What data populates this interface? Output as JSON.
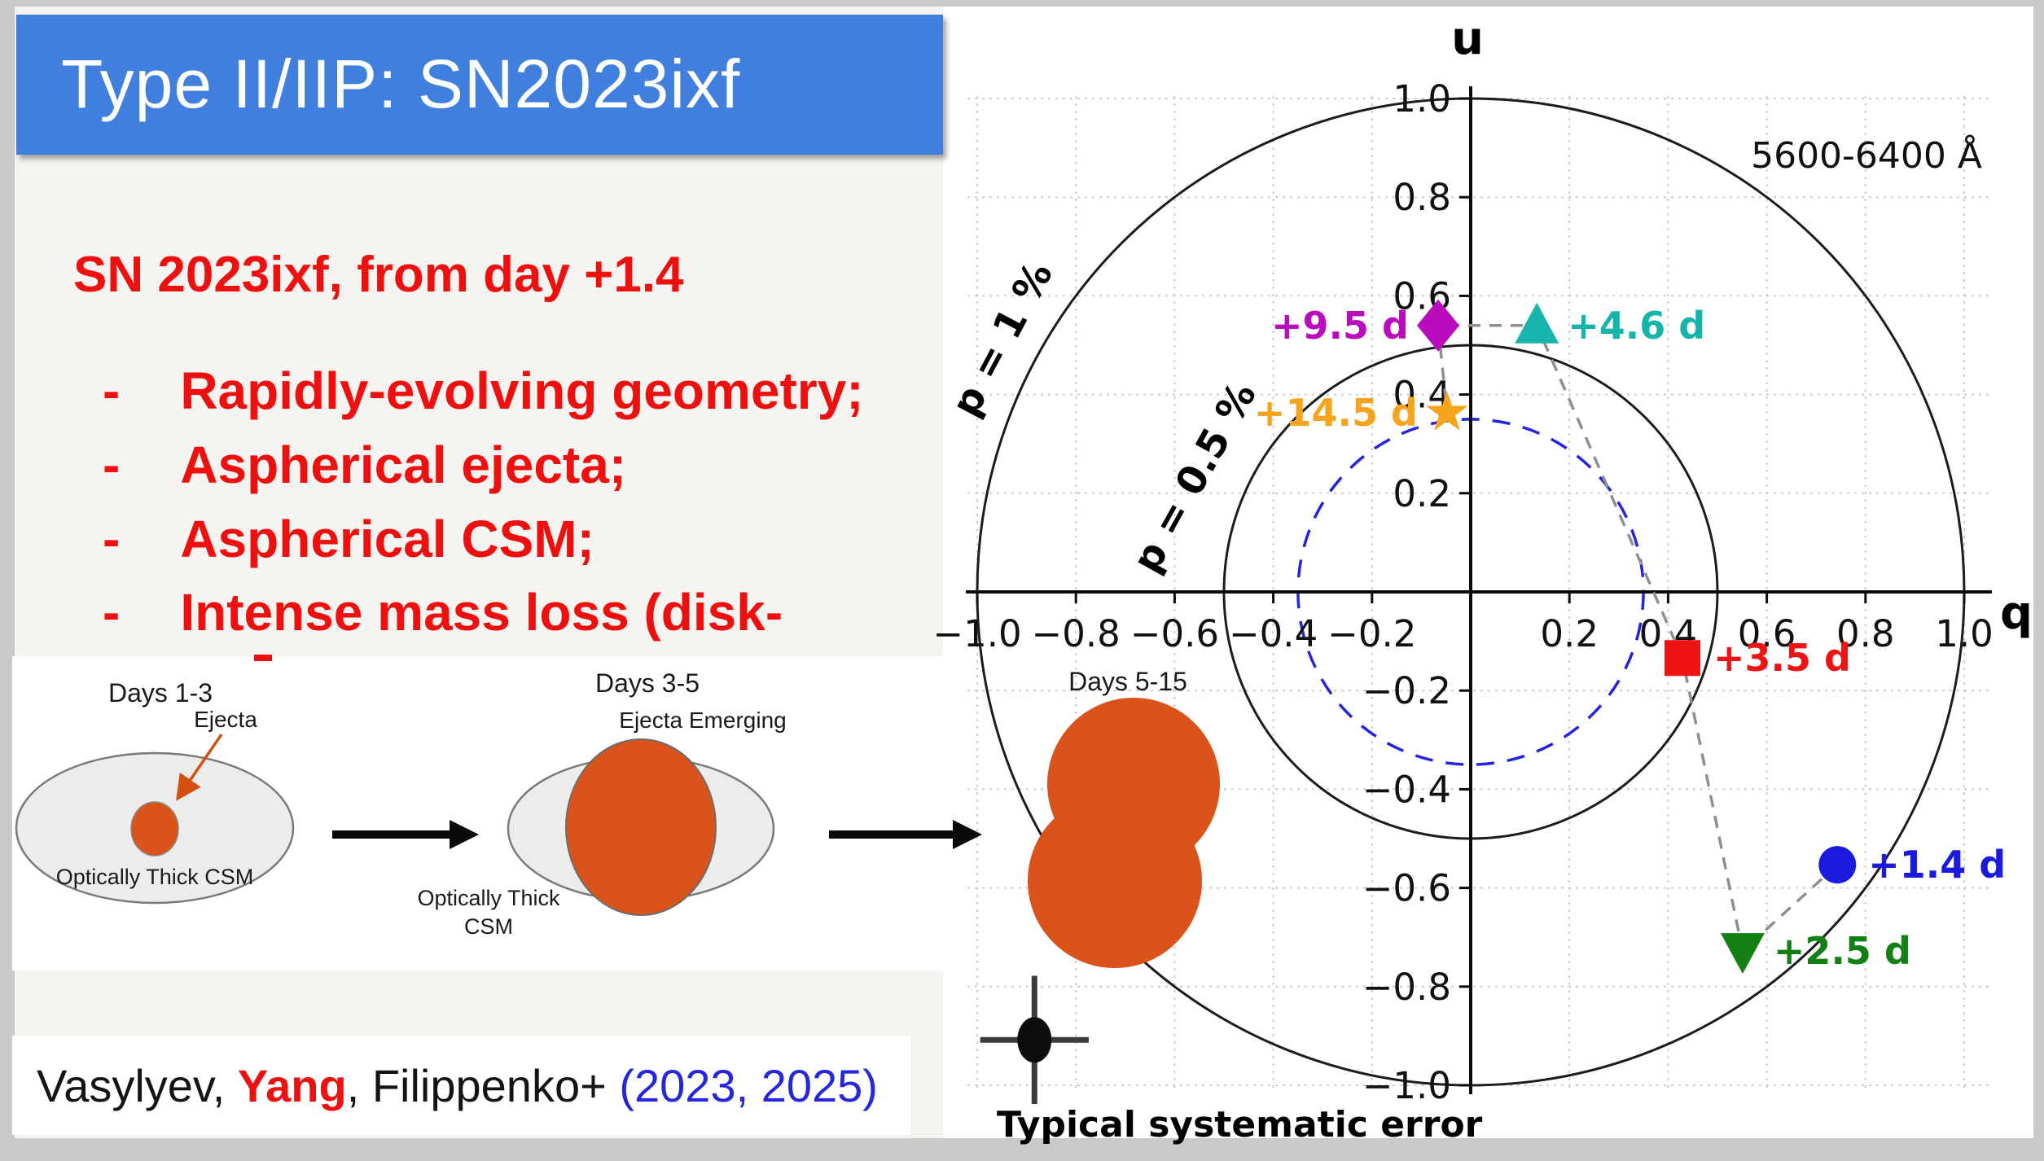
{
  "slide": {
    "title": "Type II/IIP: SN2023ixf",
    "heading": "SN 2023ixf, from day +1.4",
    "bullets": [
      "Rapidly-evolving geometry;",
      "Aspherical ejecta;",
      "Aspherical CSM;",
      "Intense mass loss (disk-"
    ],
    "citation": {
      "authors_1": "Vasylyev, ",
      "highlight": "Yang",
      "authors_2": ", Filippenko+ ",
      "years": "(2023, 2025)"
    },
    "colors": {
      "banner": "#407fdd",
      "bullet_red": "#ee0f0f",
      "citation_years_blue": "#2626dd"
    }
  },
  "diagram": {
    "stages": [
      {
        "title": "Days 1-3",
        "callout": "Ejecta",
        "caption": "Optically Thick CSM"
      },
      {
        "title": "Days 3-5",
        "callout": "Ejecta Emerging",
        "caption_line1": "Optically Thick",
        "caption_line2": "CSM"
      },
      {
        "title": "Days 5-15"
      }
    ],
    "ejecta_color": "#d9531b"
  },
  "chart_data": {
    "type": "scatter",
    "xlabel": "q",
    "ylabel": "u",
    "annotation": "5600-6400 Å",
    "xlim": [
      -1.0,
      1.0
    ],
    "ylim": [
      -1.0,
      1.0
    ],
    "grid": true,
    "xticks": [
      {
        "v": -1.0,
        "label": "−1.0"
      },
      {
        "v": -0.8,
        "label": "−0.8"
      },
      {
        "v": -0.6,
        "label": "−0.6"
      },
      {
        "v": -0.4,
        "label": "−0.4"
      },
      {
        "v": -0.2,
        "label": "−0.2"
      },
      {
        "v": 0.2,
        "label": "0.2"
      },
      {
        "v": 0.4,
        "label": "0.4"
      },
      {
        "v": 0.6,
        "label": "0.6"
      },
      {
        "v": 0.8,
        "label": "0.8"
      },
      {
        "v": 1.0,
        "label": "1.0"
      }
    ],
    "yticks": [
      {
        "v": 1.0,
        "label": "1.0"
      },
      {
        "v": 0.8,
        "label": "0.8"
      },
      {
        "v": 0.6,
        "label": "0.6"
      },
      {
        "v": 0.4,
        "label": "0.4"
      },
      {
        "v": 0.2,
        "label": "0.2"
      },
      {
        "v": -0.2,
        "label": "−0.2"
      },
      {
        "v": -0.4,
        "label": "−0.4"
      },
      {
        "v": -0.6,
        "label": "−0.6"
      },
      {
        "v": -0.8,
        "label": "−0.8"
      },
      {
        "v": -1.0,
        "label": "−1.0"
      }
    ],
    "contours": [
      {
        "label": "p = 1 %",
        "radius": 1.0,
        "style": "solid"
      },
      {
        "label": "p = 0.5 %",
        "radius": 0.5,
        "style": "solid"
      },
      {
        "label": "",
        "radius": 0.35,
        "style": "blue-dashed"
      }
    ],
    "points": [
      {
        "day": "+1.4 d",
        "q": 0.743,
        "u": -0.553,
        "marker": "circle",
        "color": "#1b1be0",
        "label_side": "right"
      },
      {
        "day": "+2.5 d",
        "q": 0.551,
        "u": -0.728,
        "marker": "triangle-down",
        "color": "#128012",
        "label_side": "right"
      },
      {
        "day": "+3.5 d",
        "q": 0.429,
        "u": -0.134,
        "marker": "square",
        "color": "#ee1414",
        "label_side": "right"
      },
      {
        "day": "+4.6 d",
        "q": 0.134,
        "u": 0.54,
        "marker": "triangle-up",
        "color": "#16b4aa",
        "label_side": "right"
      },
      {
        "day": "+9.5 d",
        "q": -0.066,
        "u": 0.54,
        "marker": "diamond",
        "color": "#ba0cbc",
        "label_side": "left"
      },
      {
        "day": "+14.5 d",
        "q": -0.048,
        "u": 0.363,
        "marker": "star",
        "color": "#f7a41d",
        "label_side": "left"
      }
    ],
    "error_marker": {
      "label": "Typical systematic error",
      "q": -0.884,
      "u": -0.908,
      "q_err": 0.11,
      "u_err": 0.13
    }
  }
}
